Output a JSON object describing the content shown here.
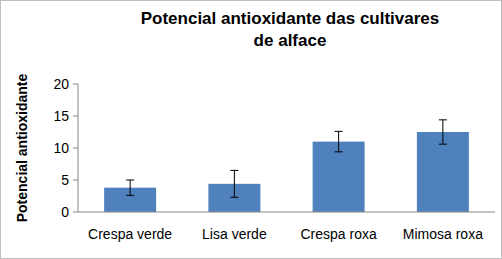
{
  "chart_data": {
    "type": "bar",
    "title": "Potencial antioxidante das cultivares de alface",
    "y_label": "Potencial antioxidante",
    "categories": [
      "Crespa verde",
      "Lisa verde",
      "Crespa roxa",
      "Mimosa roxa"
    ],
    "values": [
      3.8,
      4.4,
      11.0,
      12.5
    ],
    "errors": [
      1.2,
      2.1,
      1.6,
      1.9
    ],
    "color": "#4f81bd",
    "ylim": [
      0,
      20
    ],
    "yticks": [
      0,
      5,
      10,
      15,
      20
    ],
    "grid": false
  }
}
